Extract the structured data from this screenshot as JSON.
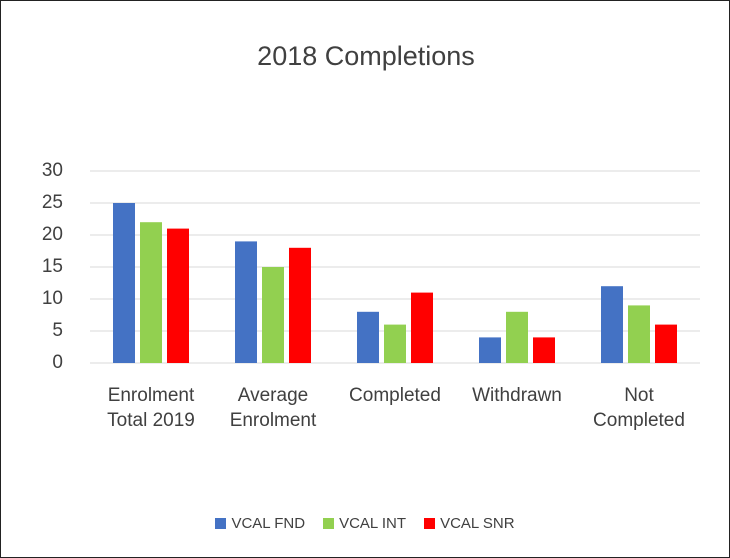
{
  "chart_data": {
    "type": "bar",
    "title": "2018 Completions",
    "categories": [
      "Enrolment Total 2019",
      "Average Enrolment",
      "Completed",
      "Withdrawn",
      "Not Completed"
    ],
    "series": [
      {
        "name": "VCAL FND",
        "color": "#4472c4",
        "values": [
          25,
          19,
          8,
          4,
          12
        ]
      },
      {
        "name": "VCAL INT",
        "color": "#92d050",
        "values": [
          22,
          15,
          6,
          8,
          9
        ]
      },
      {
        "name": "VCAL SNR",
        "color": "#ff0000",
        "values": [
          21,
          18,
          11,
          4,
          6
        ]
      }
    ],
    "ylim": [
      0,
      30
    ],
    "yticks": [
      0,
      5,
      10,
      15,
      20,
      25,
      30
    ],
    "grid": true,
    "legend": "bottom"
  }
}
